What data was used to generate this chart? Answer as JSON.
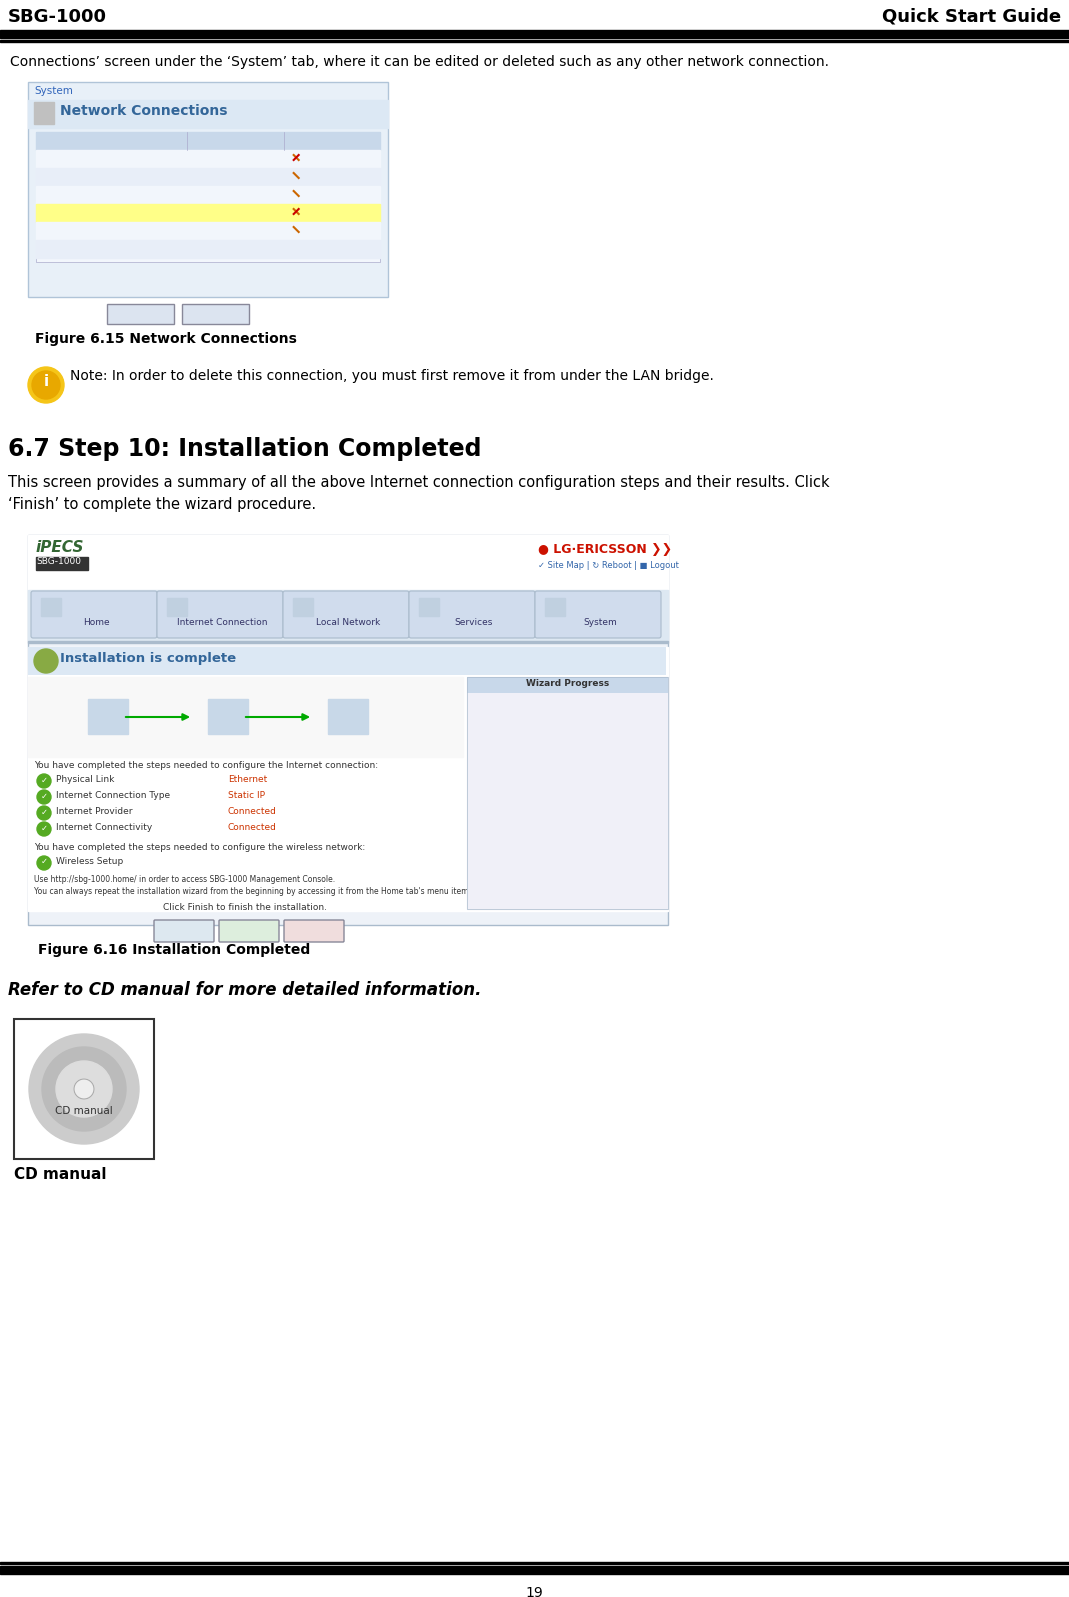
{
  "header_left": "SBG-1000",
  "header_right": "Quick Start Guide",
  "page_number": "19",
  "bg_color": "#ffffff",
  "body_text_1": "Connections’ screen under the ‘System’ tab, where it can be edited or deleted such as any other network connection.",
  "figure_615_caption": "Figure 6.15 Network Connections",
  "note_text": "Note: In order to delete this connection, you must first remove it from under the LAN bridge.",
  "section_title": "6.7 Step 10: Installation Completed",
  "section_body_1": "This screen provides a summary of all the above Internet connection configuration steps and their results. Click",
  "section_body_2": "‘Finish’ to complete the wizard procedure.",
  "figure_616_caption": "Figure 6.16 Installation Completed",
  "cd_text": "Refer to CD manual for more detailed information.",
  "cd_label": "CD manual"
}
